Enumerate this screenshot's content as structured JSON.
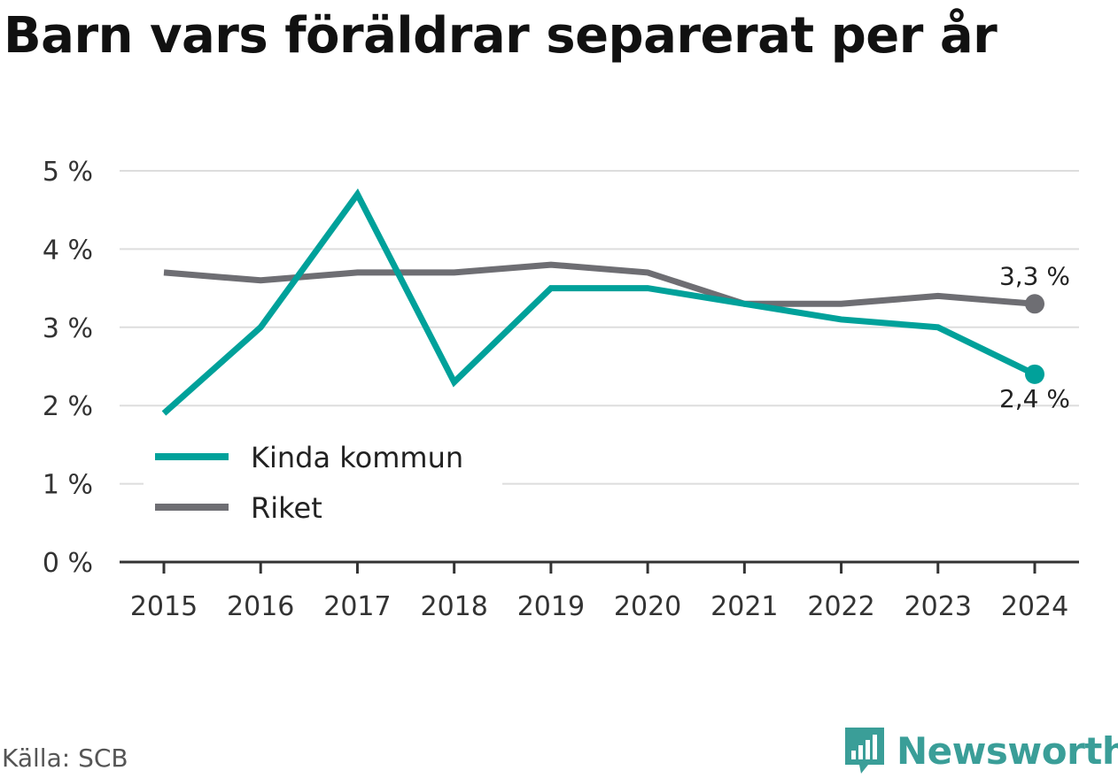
{
  "title": "Barn vars föräldrar separerat per år",
  "source": "Källa: SCB",
  "brand": "Newsworthy",
  "colors": {
    "kinda": "#00a19a",
    "riket": "#6e6e73",
    "grid": "#dddddd",
    "axis": "#333333"
  },
  "chart_data": {
    "type": "line",
    "title": "Barn vars föräldrar separerat per år",
    "x": [
      "2015",
      "2016",
      "2017",
      "2018",
      "2019",
      "2020",
      "2021",
      "2022",
      "2023",
      "2024"
    ],
    "y_ticks": [
      "0 %",
      "1 %",
      "2 %",
      "3 %",
      "4 %",
      "5 %"
    ],
    "ylim": [
      0,
      5
    ],
    "grid": true,
    "legend": "bottom-left",
    "series": [
      {
        "name": "Kinda kommun",
        "values": [
          1.9,
          3.0,
          4.7,
          2.3,
          3.5,
          3.5,
          3.3,
          3.1,
          3.0,
          2.4
        ],
        "end_label": "2,4 %"
      },
      {
        "name": "Riket",
        "values": [
          3.7,
          3.6,
          3.7,
          3.7,
          3.8,
          3.7,
          3.3,
          3.3,
          3.4,
          3.3
        ],
        "end_label": "3,3 %"
      }
    ]
  }
}
